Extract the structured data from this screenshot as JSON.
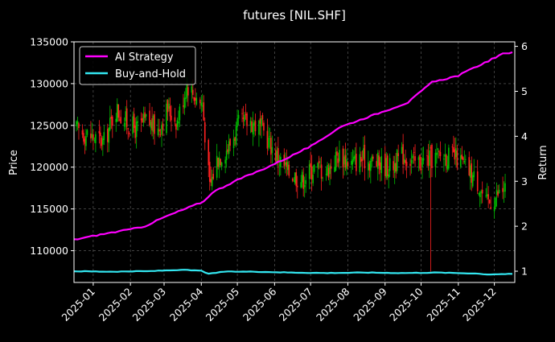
{
  "chart_data": {
    "type": "candlestick+line",
    "title": "futures [NIL.SHF]",
    "ylabel_left": "Price",
    "ylabel_right": "Return",
    "ylim_left": [
      106200,
      135000
    ],
    "ylim_right": [
      0.75,
      6.1
    ],
    "yticks_left": [
      "110000",
      "115000",
      "120000",
      "125000",
      "130000",
      "135000"
    ],
    "yticks_right": [
      "1",
      "2",
      "3",
      "4",
      "5",
      "6"
    ],
    "xticks": [
      "2025-01",
      "2025-02",
      "2025-03",
      "2025-04",
      "2025-05",
      "2025-06",
      "2025-07",
      "2025-08",
      "2025-09",
      "2025-10",
      "2025-11",
      "2025-12"
    ],
    "xlim": [
      "2024-12-16",
      "2025-12-18"
    ],
    "grid": true,
    "legend_position": "top-left",
    "up_color": "#00c000",
    "down_color": "#ff2020",
    "price_anchors": [
      {
        "date": "2024-12-18",
        "close": 124500
      },
      {
        "date": "2025-01-02",
        "close": 123500
      },
      {
        "date": "2025-01-10",
        "close": 123000
      },
      {
        "date": "2025-01-20",
        "close": 127000
      },
      {
        "date": "2025-01-28",
        "close": 125500
      },
      {
        "date": "2025-02-06",
        "close": 124500
      },
      {
        "date": "2025-02-14",
        "close": 125500
      },
      {
        "date": "2025-02-24",
        "close": 124500
      },
      {
        "date": "2025-03-04",
        "close": 127000
      },
      {
        "date": "2025-03-12",
        "close": 125500
      },
      {
        "date": "2025-03-20",
        "close": 130000
      },
      {
        "date": "2025-03-27",
        "close": 128500
      },
      {
        "date": "2025-04-02",
        "close": 127500
      },
      {
        "date": "2025-04-08",
        "close": 117500
      },
      {
        "date": "2025-04-14",
        "close": 121000
      },
      {
        "date": "2025-04-24",
        "close": 122500
      },
      {
        "date": "2025-05-02",
        "close": 125000
      },
      {
        "date": "2025-05-12",
        "close": 125500
      },
      {
        "date": "2025-05-22",
        "close": 124500
      },
      {
        "date": "2025-06-02",
        "close": 121500
      },
      {
        "date": "2025-06-12",
        "close": 119500
      },
      {
        "date": "2025-06-24",
        "close": 118500
      },
      {
        "date": "2025-07-04",
        "close": 120000
      },
      {
        "date": "2025-07-14",
        "close": 119500
      },
      {
        "date": "2025-07-24",
        "close": 121500
      },
      {
        "date": "2025-08-04",
        "close": 120500
      },
      {
        "date": "2025-08-14",
        "close": 121000
      },
      {
        "date": "2025-08-26",
        "close": 120500
      },
      {
        "date": "2025-09-05",
        "close": 120000
      },
      {
        "date": "2025-09-16",
        "close": 121500
      },
      {
        "date": "2025-09-26",
        "close": 120500
      },
      {
        "date": "2025-10-09",
        "close": 121000
      },
      {
        "date": "2025-10-20",
        "close": 121500
      },
      {
        "date": "2025-10-31",
        "close": 121000
      },
      {
        "date": "2025-11-10",
        "close": 119500
      },
      {
        "date": "2025-11-18",
        "close": 118000
      },
      {
        "date": "2025-11-24",
        "close": 115500
      },
      {
        "date": "2025-12-02",
        "close": 116500
      },
      {
        "date": "2025-12-10",
        "close": 117500
      }
    ],
    "spikes": [
      {
        "date": "2025-10-09",
        "low": 107500
      }
    ],
    "series": [
      {
        "name": "AI Strategy",
        "color": "#ff00ff",
        "points": [
          {
            "date": "2024-12-16",
            "value": 1.7
          },
          {
            "date": "2025-01-10",
            "value": 1.83
          },
          {
            "date": "2025-02-01",
            "value": 1.93
          },
          {
            "date": "2025-02-13",
            "value": 2.0
          },
          {
            "date": "2025-03-01",
            "value": 2.2
          },
          {
            "date": "2025-04-03",
            "value": 2.55
          },
          {
            "date": "2025-04-10",
            "value": 2.75
          },
          {
            "date": "2025-05-01",
            "value": 3.03
          },
          {
            "date": "2025-05-20",
            "value": 3.24
          },
          {
            "date": "2025-06-10",
            "value": 3.5
          },
          {
            "date": "2025-07-05",
            "value": 3.83
          },
          {
            "date": "2025-07-25",
            "value": 4.2
          },
          {
            "date": "2025-08-20",
            "value": 4.45
          },
          {
            "date": "2025-09-20",
            "value": 4.75
          },
          {
            "date": "2025-10-10",
            "value": 5.2
          },
          {
            "date": "2025-11-01",
            "value": 5.35
          },
          {
            "date": "2025-11-20",
            "value": 5.6
          },
          {
            "date": "2025-12-08",
            "value": 5.83
          },
          {
            "date": "2025-12-16",
            "value": 5.87
          }
        ]
      },
      {
        "name": "Buy-and-Hold",
        "color": "#33e6f0",
        "points": [
          {
            "date": "2024-12-16",
            "value": 1.0
          },
          {
            "date": "2025-01-15",
            "value": 0.99
          },
          {
            "date": "2025-02-15",
            "value": 1.0
          },
          {
            "date": "2025-03-15",
            "value": 1.03
          },
          {
            "date": "2025-04-01",
            "value": 1.01
          },
          {
            "date": "2025-04-07",
            "value": 0.94
          },
          {
            "date": "2025-04-20",
            "value": 0.99
          },
          {
            "date": "2025-05-15",
            "value": 0.99
          },
          {
            "date": "2025-06-15",
            "value": 0.97
          },
          {
            "date": "2025-07-15",
            "value": 0.96
          },
          {
            "date": "2025-08-15",
            "value": 0.97
          },
          {
            "date": "2025-09-15",
            "value": 0.96
          },
          {
            "date": "2025-10-15",
            "value": 0.97
          },
          {
            "date": "2025-11-15",
            "value": 0.95
          },
          {
            "date": "2025-11-25",
            "value": 0.93
          },
          {
            "date": "2025-12-16",
            "value": 0.94
          }
        ]
      }
    ]
  }
}
